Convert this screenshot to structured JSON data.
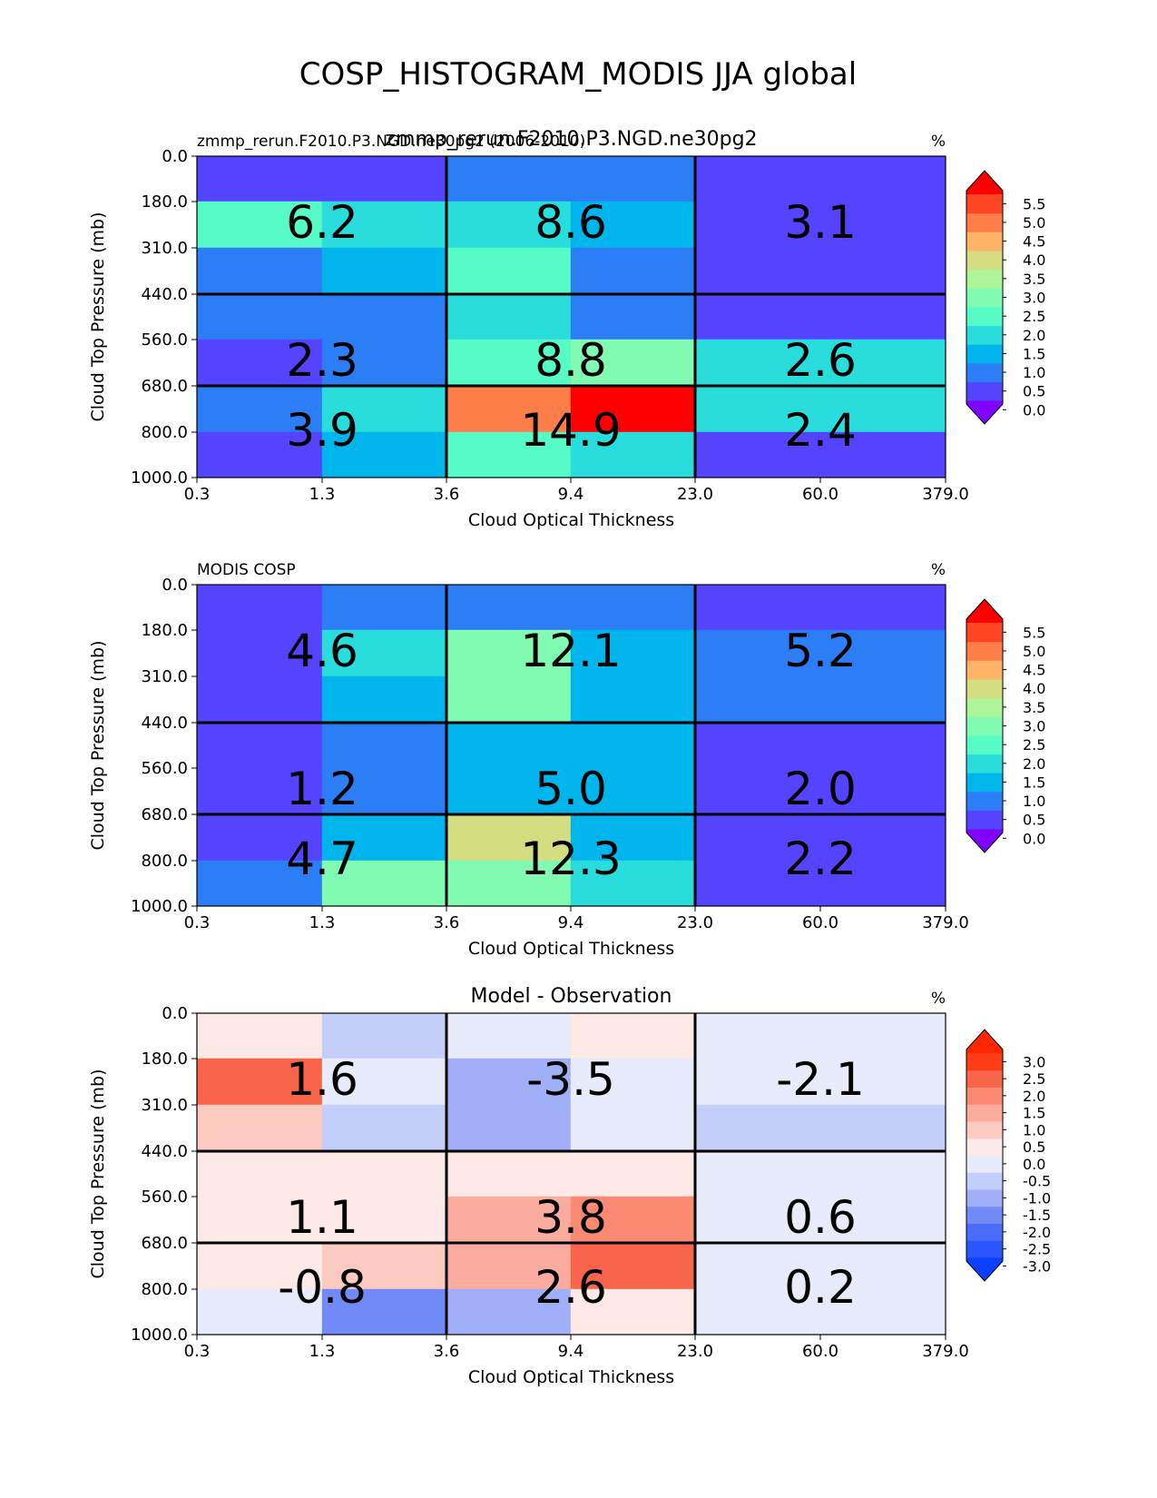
{
  "figure_title": "COSP_HISTOGRAM_MODIS JJA global",
  "chart_data": [
    {
      "type": "heatmap",
      "panel": "test",
      "title": "zmmp_rerun.F2010.P3.NGD.ne30pg2",
      "left_title": "zmmp_rerun.F2010.P3.NGD.ne30pg2 (2006-2010)",
      "units": "%",
      "xlabel": "Cloud Optical Thickness",
      "ylabel": "Cloud Top Pressure (mb)",
      "x_ticks": [
        "0.3",
        "1.3",
        "3.6",
        "9.4",
        "23.0",
        "60.0",
        "379.0"
      ],
      "y_ticks": [
        "0.0",
        "180.0",
        "310.0",
        "440.0",
        "560.0",
        "680.0",
        "800.0",
        "1000.0"
      ],
      "cells": [
        [
          0.4,
          0.4,
          0.9,
          0.8,
          0.3
        ],
        [
          2.1,
          1.8,
          1.9,
          1.3,
          0.3
        ],
        [
          0.9,
          1.3,
          2.0,
          0.8,
          0.3
        ],
        [
          0.8,
          0.8,
          1.7,
          0.8,
          0.3
        ],
        [
          0.4,
          0.8,
          2.1,
          2.8,
          1.8
        ],
        [
          0.8,
          1.7,
          4.8,
          5.8,
          1.8
        ],
        [
          0.4,
          1.3,
          2.0,
          1.8,
          0.3
        ]
      ],
      "block_values": [
        [
          "6.2",
          "8.6",
          "3.1"
        ],
        [
          "2.3",
          "8.8",
          "2.6"
        ],
        [
          "3.9",
          "14.9",
          "2.4"
        ]
      ],
      "colorbar_ticks": [
        "5.5",
        "5.0",
        "4.5",
        "4.0",
        "3.5",
        "3.0",
        "2.5",
        "2.0",
        "1.5",
        "1.0",
        "0.5",
        "0.0"
      ],
      "clim": [
        0.0,
        5.5
      ]
    },
    {
      "type": "heatmap",
      "panel": "reference",
      "title": "",
      "left_title": "MODIS COSP",
      "units": "%",
      "xlabel": "Cloud Optical Thickness",
      "ylabel": "Cloud Top Pressure (mb)",
      "x_ticks": [
        "0.3",
        "1.3",
        "3.6",
        "9.4",
        "23.0",
        "60.0",
        "379.0"
      ],
      "y_ticks": [
        "0.0",
        "180.0",
        "310.0",
        "440.0",
        "560.0",
        "680.0",
        "800.0",
        "1000.0"
      ],
      "cells": [
        [
          0.3,
          0.8,
          0.8,
          0.8,
          0.3
        ],
        [
          0.3,
          1.8,
          2.8,
          1.3,
          0.8
        ],
        [
          0.3,
          1.3,
          2.8,
          1.3,
          0.8
        ],
        [
          0.3,
          0.8,
          1.3,
          1.3,
          0.3
        ],
        [
          0.3,
          0.8,
          1.3,
          1.3,
          0.3
        ],
        [
          0.3,
          1.3,
          3.8,
          1.3,
          0.3
        ],
        [
          0.8,
          2.8,
          2.8,
          1.8,
          0.3
        ]
      ],
      "block_values": [
        [
          "4.6",
          "12.1",
          "5.2"
        ],
        [
          "1.2",
          "5.0",
          "2.0"
        ],
        [
          "4.7",
          "12.3",
          "2.2"
        ]
      ],
      "colorbar_ticks": [
        "5.5",
        "5.0",
        "4.5",
        "4.0",
        "3.5",
        "3.0",
        "2.5",
        "2.0",
        "1.5",
        "1.0",
        "0.5",
        "0.0"
      ],
      "clim": [
        0.0,
        5.5
      ]
    },
    {
      "type": "heatmap",
      "panel": "difference",
      "title": "Model - Observation",
      "left_title": "",
      "units": "%",
      "xlabel": "Cloud Optical Thickness",
      "ylabel": "Cloud Top Pressure (mb)",
      "x_ticks": [
        "0.3",
        "1.3",
        "3.6",
        "9.4",
        "23.0",
        "60.0",
        "379.0"
      ],
      "y_ticks": [
        "0.0",
        "180.0",
        "310.0",
        "440.0",
        "560.0",
        "680.0",
        "800.0",
        "1000.0"
      ],
      "cells": [
        [
          0.2,
          -0.7,
          -0.2,
          0.2,
          -0.2
        ],
        [
          2.2,
          -0.2,
          -1.2,
          -0.2,
          -0.2
        ],
        [
          0.7,
          -0.7,
          -1.2,
          -0.2,
          -0.7
        ],
        [
          0.2,
          0.2,
          0.2,
          0.2,
          -0.2
        ],
        [
          0.2,
          0.2,
          1.2,
          1.7,
          -0.2
        ],
        [
          0.2,
          0.7,
          1.2,
          2.2,
          -0.2
        ],
        [
          -0.2,
          -1.7,
          -1.2,
          0.2,
          -0.2
        ]
      ],
      "block_values": [
        [
          "1.6",
          "-3.5",
          "-2.1"
        ],
        [
          "1.1",
          "3.8",
          "0.6"
        ],
        [
          "-0.8",
          "2.6",
          "0.2"
        ]
      ],
      "colorbar_ticks": [
        "3.0",
        "2.5",
        "2.0",
        "1.5",
        "1.0",
        "0.5",
        "0.0",
        "-0.5",
        "-1.0",
        "-1.5",
        "-2.0",
        "-2.5",
        "-3.0"
      ],
      "clim": [
        -3.0,
        3.0
      ]
    }
  ],
  "colors": {
    "seq": [
      "#8000ff",
      "#5544ff",
      "#2c7ef7",
      "#00b5eb",
      "#2adddd",
      "#56fbc6",
      "#82fbb2",
      "#aef59a",
      "#d4dd80",
      "#feb366",
      "#ff7d48",
      "#ff4424",
      "#ff0000"
    ],
    "div": [
      "#0a40ff",
      "#2a55ff",
      "#4a6cfb",
      "#7289f8",
      "#a0b0f8",
      "#c4cefa",
      "#e8ebfb",
      "#fde9e6",
      "#fdcac2",
      "#fbac9e",
      "#fa8a72",
      "#f8654a",
      "#ff3c14",
      "#ff2600"
    ]
  }
}
